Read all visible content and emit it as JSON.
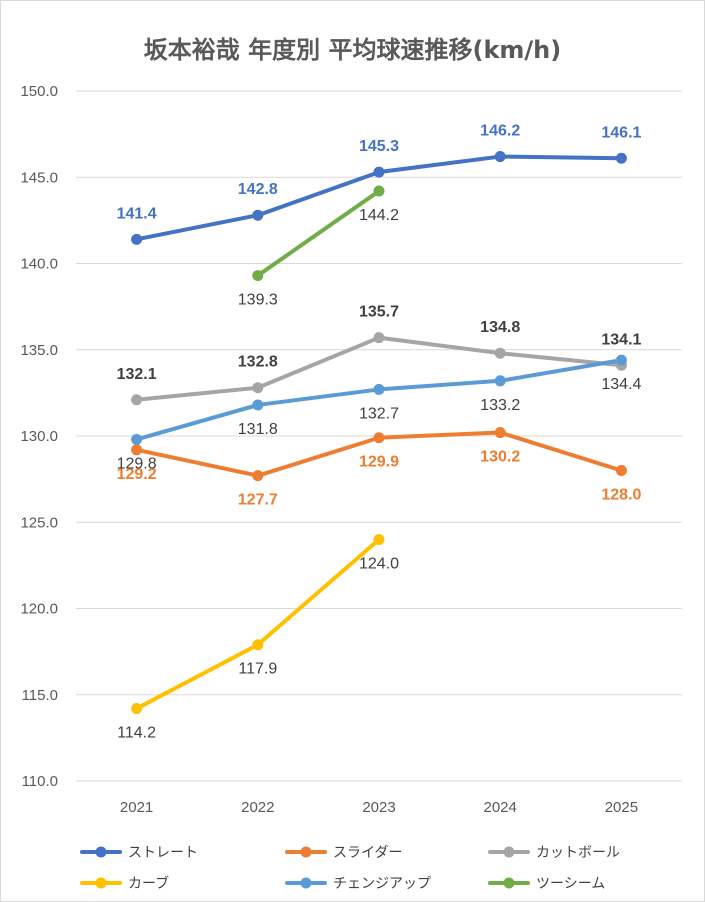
{
  "chart_data": {
    "type": "line",
    "title": "坂本裕哉 年度別 平均球速推移(km/h)",
    "categories": [
      "2021",
      "2022",
      "2023",
      "2024",
      "2025"
    ],
    "ylim": [
      110,
      150
    ],
    "yticks": [
      "110.0",
      "115.0",
      "120.0",
      "125.0",
      "130.0",
      "135.0",
      "140.0",
      "145.0",
      "150.0"
    ],
    "grid": true,
    "legend_position": "bottom",
    "series": [
      {
        "name": "ストレート",
        "color": "#4472C4",
        "label_color": "#4472C4",
        "label_bold": true,
        "values": [
          141.4,
          142.8,
          145.3,
          146.2,
          146.1
        ],
        "labels": [
          "141.4",
          "142.8",
          "145.3",
          "146.2",
          "146.1"
        ],
        "label_pos": [
          "above",
          "above",
          "above",
          "above",
          "above"
        ]
      },
      {
        "name": "スライダー",
        "color": "#ED7D31",
        "label_color": "#ED7D31",
        "label_bold": true,
        "values": [
          129.2,
          127.7,
          129.9,
          130.2,
          128.0
        ],
        "labels": [
          "129.2",
          "127.7",
          "129.9",
          "130.2",
          "128.0"
        ],
        "label_pos": [
          "below",
          "below",
          "below",
          "below",
          "below"
        ]
      },
      {
        "name": "カットボール",
        "color": "#A5A5A5",
        "label_color": "#404040",
        "label_bold": true,
        "values": [
          132.1,
          132.8,
          135.7,
          134.8,
          134.1
        ],
        "labels": [
          "132.1",
          "132.8",
          "135.7",
          "134.8",
          "134.1"
        ],
        "label_pos": [
          "above",
          "above",
          "above",
          "above",
          "above"
        ]
      },
      {
        "name": "カーブ",
        "color": "#FFC000",
        "label_color": "#404040",
        "label_bold": false,
        "values": [
          114.2,
          117.9,
          124.0,
          null,
          null
        ],
        "labels": [
          "114.2",
          "117.9",
          "124.0",
          "",
          ""
        ],
        "label_pos": [
          "below",
          "below",
          "below",
          "below",
          "below"
        ]
      },
      {
        "name": "チェンジアップ",
        "color": "#5B9BD5",
        "label_color": "#404040",
        "label_bold": false,
        "values": [
          129.8,
          131.8,
          132.7,
          133.2,
          134.4
        ],
        "labels": [
          "129.8",
          "131.8",
          "132.7",
          "133.2",
          "134.4"
        ],
        "label_pos": [
          "below",
          "below",
          "below",
          "below",
          "below"
        ]
      },
      {
        "name": "ツーシーム",
        "color": "#70AD47",
        "label_color": "#404040",
        "label_bold": false,
        "values": [
          null,
          139.3,
          144.2,
          null,
          null
        ],
        "labels": [
          "",
          "139.3",
          "144.2",
          "",
          ""
        ],
        "label_pos": [
          "below",
          "below",
          "below",
          "below",
          "below"
        ]
      }
    ]
  }
}
